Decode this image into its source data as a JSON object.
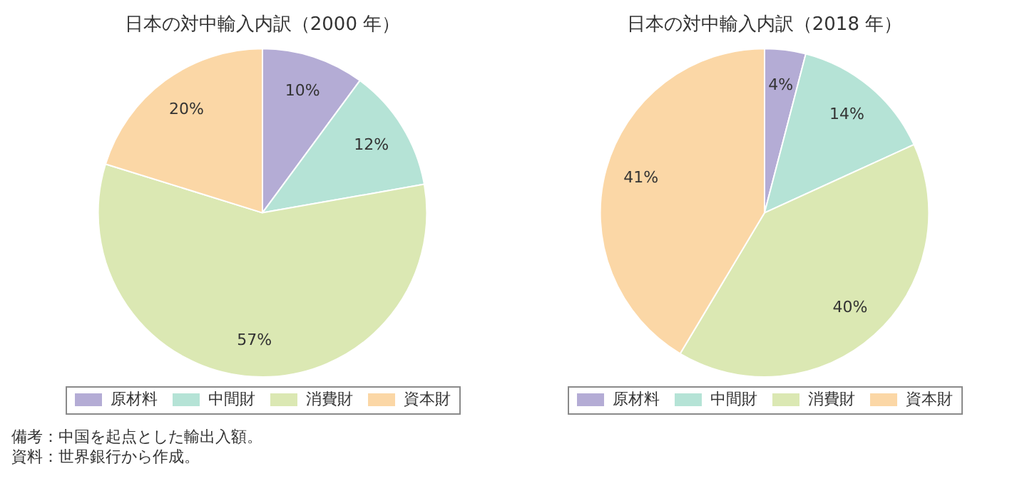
{
  "chart_data": [
    {
      "type": "pie",
      "title": "日本の対中輸入内訳（2000 年）",
      "categories": [
        "原材料",
        "中間財",
        "消費財",
        "資本財"
      ],
      "values": [
        10,
        12,
        57,
        20
      ],
      "colors": [
        "#b4acd5",
        "#b5e3d6",
        "#dbe8b3",
        "#fbd7a6"
      ],
      "value_labels": [
        "10%",
        "12%",
        "57%",
        "20%"
      ],
      "legend": "bottom",
      "annotations": [
        "備考：中国を起点とした輸出入額。",
        "資料：世界銀行から作成。"
      ]
    },
    {
      "type": "pie",
      "title": "日本の対中輸入内訳（2018 年）",
      "categories": [
        "原材料",
        "中間財",
        "消費財",
        "資本財"
      ],
      "values": [
        4,
        14,
        40,
        41
      ],
      "colors": [
        "#b4acd5",
        "#b5e3d6",
        "#dbe8b3",
        "#fbd7a6"
      ],
      "value_labels": [
        "4%",
        "14%",
        "40%",
        "41%"
      ],
      "legend": "bottom"
    }
  ]
}
